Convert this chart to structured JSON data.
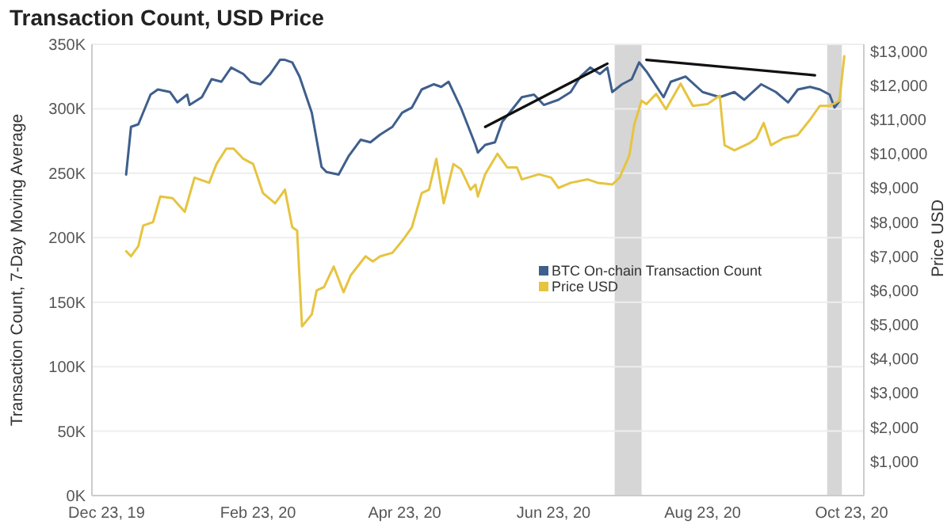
{
  "chart_data": {
    "type": "line",
    "title": "Transaction Count, USD Price",
    "ylabel": "Transaction Count, 7-Day Moving Average",
    "y2label": "Price USD",
    "xlim": [
      "2019-12-17",
      "2020-10-28"
    ],
    "xticks": [
      {
        "value": "2019-12-23",
        "label": "Dec 23, 19"
      },
      {
        "value": "2020-02-23",
        "label": "Feb 23, 20"
      },
      {
        "value": "2020-04-23",
        "label": "Apr 23, 20"
      },
      {
        "value": "2020-06-23",
        "label": "Jun 23, 20"
      },
      {
        "value": "2020-08-23",
        "label": "Aug 23, 20"
      },
      {
        "value": "2020-10-23",
        "label": "Oct 23, 20"
      }
    ],
    "ylim": [
      0,
      350000
    ],
    "yticks": [
      {
        "value": 0,
        "label": "0K"
      },
      {
        "value": 50000,
        "label": "50K"
      },
      {
        "value": 100000,
        "label": "100K"
      },
      {
        "value": 150000,
        "label": "150K"
      },
      {
        "value": 200000,
        "label": "200K"
      },
      {
        "value": 250000,
        "label": "250K"
      },
      {
        "value": 300000,
        "label": "300K"
      },
      {
        "value": 350000,
        "label": "350K"
      }
    ],
    "y2lim": [
      0,
      13200
    ],
    "y2ticks": [
      {
        "value": 1000,
        "label": "$1,000"
      },
      {
        "value": 2000,
        "label": "$2,000"
      },
      {
        "value": 3000,
        "label": "$3,000"
      },
      {
        "value": 4000,
        "label": "$4,000"
      },
      {
        "value": 5000,
        "label": "$5,000"
      },
      {
        "value": 6000,
        "label": "$6,000"
      },
      {
        "value": 7000,
        "label": "$7,000"
      },
      {
        "value": 8000,
        "label": "$8,000"
      },
      {
        "value": 9000,
        "label": "$9,000"
      },
      {
        "value": 10000,
        "label": "$10,000"
      },
      {
        "value": 11000,
        "label": "$11,000"
      },
      {
        "value": 12000,
        "label": "$12,000"
      },
      {
        "value": 13000,
        "label": "$13,000"
      }
    ],
    "grid": "y",
    "legend": "right",
    "bands": [
      {
        "axis": "x",
        "from": "2020-07-18",
        "to": "2020-07-29",
        "color": "#d6d6d6"
      },
      {
        "axis": "x",
        "from": "2020-10-13",
        "to": "2020-10-19",
        "color": "#d6d6d6"
      }
    ],
    "series": [
      {
        "name": "BTC On-chain Transaction Count",
        "color": "#3f5f8c",
        "x": [
          "2019-12-31",
          "2020-01-02",
          "2020-01-05",
          "2020-01-10",
          "2020-01-13",
          "2020-01-18",
          "2020-01-21",
          "2020-01-25",
          "2020-01-26",
          "2020-01-31",
          "2020-02-04",
          "2020-02-08",
          "2020-02-12",
          "2020-02-17",
          "2020-02-20",
          "2020-02-24",
          "2020-02-28",
          "2020-03-03",
          "2020-03-05",
          "2020-03-08",
          "2020-03-11",
          "2020-03-16",
          "2020-03-20",
          "2020-03-22",
          "2020-03-27",
          "2020-03-31",
          "2020-04-05",
          "2020-04-09",
          "2020-04-13",
          "2020-04-18",
          "2020-04-22",
          "2020-04-26",
          "2020-04-30",
          "2020-05-05",
          "2020-05-08",
          "2020-05-11",
          "2020-05-16",
          "2020-05-22",
          "2020-05-23",
          "2020-05-26",
          "2020-05-30",
          "2020-06-02",
          "2020-06-05",
          "2020-06-10",
          "2020-06-15",
          "2020-06-19",
          "2020-06-25",
          "2020-06-30",
          "2020-07-04",
          "2020-07-08",
          "2020-07-12",
          "2020-07-15",
          "2020-07-17",
          "2020-07-21",
          "2020-07-25",
          "2020-07-28",
          "2020-07-31",
          "2020-08-07",
          "2020-08-10",
          "2020-08-16",
          "2020-08-23",
          "2020-08-30",
          "2020-09-05",
          "2020-09-09",
          "2020-09-16",
          "2020-09-22",
          "2020-09-27",
          "2020-10-01",
          "2020-10-06",
          "2020-10-10",
          "2020-10-14",
          "2020-10-16",
          "2020-10-18"
        ],
        "values": [
          249000,
          286000,
          288000,
          311000,
          315000,
          313000,
          305000,
          311000,
          303000,
          309000,
          323000,
          321000,
          332000,
          327000,
          321000,
          319000,
          327000,
          338000,
          338000,
          336000,
          325000,
          297000,
          255000,
          251000,
          249000,
          263000,
          276000,
          274000,
          280000,
          286000,
          297000,
          301000,
          315000,
          319000,
          317000,
          321000,
          301000,
          272000,
          266000,
          272000,
          274000,
          290000,
          297000,
          309000,
          311000,
          303000,
          307000,
          313000,
          325000,
          332000,
          327000,
          332000,
          313000,
          319000,
          323000,
          336000,
          329000,
          309000,
          321000,
          325000,
          313000,
          309000,
          313000,
          307000,
          319000,
          313000,
          305000,
          315000,
          317000,
          315000,
          311000,
          301000,
          306000
        ]
      },
      {
        "name": "Price USD",
        "color": "#e6c440",
        "axis": "y2",
        "x": [
          "2019-12-31",
          "2020-01-02",
          "2020-01-05",
          "2020-01-07",
          "2020-01-11",
          "2020-01-14",
          "2020-01-19",
          "2020-01-24",
          "2020-01-28",
          "2020-02-03",
          "2020-02-06",
          "2020-02-10",
          "2020-02-13",
          "2020-02-17",
          "2020-02-21",
          "2020-02-25",
          "2020-03-01",
          "2020-03-05",
          "2020-03-08",
          "2020-03-10",
          "2020-03-12",
          "2020-03-16",
          "2020-03-18",
          "2020-03-21",
          "2020-03-25",
          "2020-03-29",
          "2020-04-01",
          "2020-04-07",
          "2020-04-10",
          "2020-04-13",
          "2020-04-18",
          "2020-04-22",
          "2020-04-26",
          "2020-04-30",
          "2020-05-03",
          "2020-05-06",
          "2020-05-09",
          "2020-05-13",
          "2020-05-16",
          "2020-05-20",
          "2020-05-22",
          "2020-05-23",
          "2020-05-26",
          "2020-05-31",
          "2020-06-04",
          "2020-06-08",
          "2020-06-10",
          "2020-06-17",
          "2020-06-22",
          "2020-06-25",
          "2020-06-30",
          "2020-07-07",
          "2020-07-11",
          "2020-07-17",
          "2020-07-20",
          "2020-07-24",
          "2020-07-26",
          "2020-07-29",
          "2020-07-31",
          "2020-08-04",
          "2020-08-08",
          "2020-08-14",
          "2020-08-19",
          "2020-08-25",
          "2020-08-30",
          "2020-09-01",
          "2020-09-05",
          "2020-09-11",
          "2020-09-14",
          "2020-09-17",
          "2020-09-20",
          "2020-09-25",
          "2020-10-01",
          "2020-10-06",
          "2020-10-10",
          "2020-10-14",
          "2020-10-18",
          "2020-10-20"
        ],
        "values": [
          7150,
          7000,
          7300,
          7900,
          8000,
          8750,
          8700,
          8300,
          9300,
          9150,
          9700,
          10150,
          10150,
          9850,
          9700,
          8850,
          8550,
          8950,
          7850,
          7750,
          4950,
          5300,
          6000,
          6100,
          6700,
          5950,
          6450,
          7000,
          6850,
          7000,
          7100,
          7450,
          7850,
          8850,
          8950,
          9850,
          8550,
          9700,
          9550,
          8950,
          9100,
          8750,
          9400,
          10000,
          9600,
          9600,
          9250,
          9400,
          9300,
          9000,
          9150,
          9250,
          9150,
          9100,
          9300,
          9950,
          10850,
          11550,
          11450,
          11750,
          11300,
          12050,
          11400,
          11450,
          11700,
          10250,
          10100,
          10300,
          10450,
          10900,
          10250,
          10450,
          10550,
          11000,
          11400,
          11400,
          11550,
          12850
        ]
      },
      {
        "color": "#111111",
        "x": [
          "2020-05-26",
          "2020-07-15"
        ],
        "values": [
          286000,
          335000
        ]
      },
      {
        "color": "#111111",
        "x": [
          "2020-07-31",
          "2020-10-08"
        ],
        "values": [
          338000,
          326000
        ]
      }
    ]
  }
}
